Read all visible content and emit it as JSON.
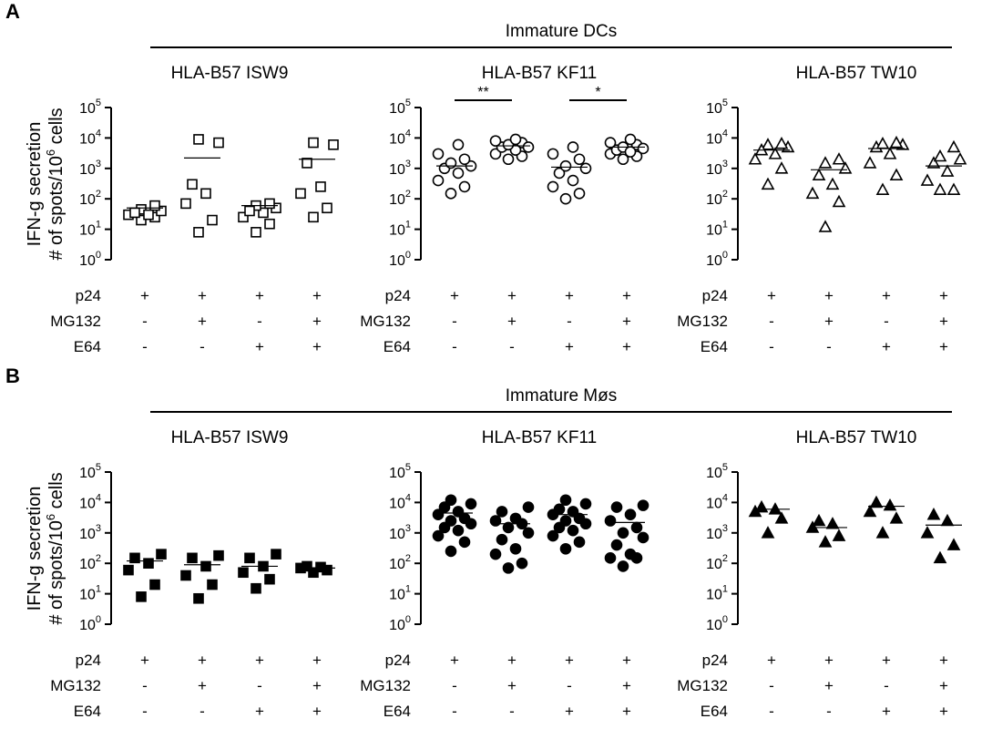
{
  "panels": [
    {
      "letter": "A",
      "group_label": "Immature DCs",
      "ylabel_line1": "IFN-g secretion",
      "ylabel_line2": "# of spots/10",
      "ylabel_sup": "6",
      "ylabel_tail": " cells"
    },
    {
      "letter": "B",
      "group_label": "Immature Møs",
      "ylabel_line1": "IFN-g secretion",
      "ylabel_line2": "# of spots/10",
      "ylabel_sup": "6",
      "ylabel_tail": " cells"
    }
  ],
  "condition_labels": [
    "p24",
    "MG132",
    "E64"
  ],
  "condition_table": [
    [
      "+",
      "+",
      "+",
      "+"
    ],
    [
      "-",
      "+",
      "-",
      "+"
    ],
    [
      "-",
      "-",
      "+",
      "+"
    ]
  ],
  "chart_data": [
    {
      "type": "scatter",
      "panel": "A",
      "title": "HLA-B57 ISW9",
      "marker": "open-square",
      "y_scale": "log",
      "ylim": [
        1,
        100000
      ],
      "yticks": [
        "10^0",
        "10^1",
        "10^2",
        "10^3",
        "10^4",
        "10^5"
      ],
      "series": [
        {
          "points": [
            20,
            30,
            25,
            40,
            60,
            45,
            30,
            35
          ],
          "mean": 50
        },
        {
          "points": [
            8,
            20,
            70,
            150,
            300,
            7000,
            9000
          ],
          "mean": 2200
        },
        {
          "points": [
            8,
            15,
            25,
            35,
            50,
            70,
            60,
            40
          ],
          "mean": 60
        },
        {
          "points": [
            25,
            50,
            150,
            250,
            1500,
            6000,
            7000
          ],
          "mean": 2000
        }
      ]
    },
    {
      "type": "scatter",
      "panel": "A",
      "title": "HLA-B57 KF11",
      "marker": "open-circle",
      "y_scale": "log",
      "ylim": [
        1,
        100000
      ],
      "yticks": [
        "10^0",
        "10^1",
        "10^2",
        "10^3",
        "10^4",
        "10^5"
      ],
      "series": [
        {
          "points": [
            150,
            250,
            400,
            700,
            1000,
            1200,
            1500,
            2000,
            3000,
            6000
          ],
          "mean": 1200
        },
        {
          "points": [
            2000,
            2500,
            3000,
            4000,
            5000,
            6000,
            7000,
            8000,
            9000,
            5000
          ],
          "mean": 5500
        },
        {
          "points": [
            100,
            150,
            250,
            400,
            700,
            1000,
            1200,
            2000,
            3000,
            5000
          ],
          "mean": 1100
        },
        {
          "points": [
            2000,
            2500,
            3000,
            4000,
            5000,
            6000,
            7000,
            9000,
            3500,
            4500
          ],
          "mean": 5000
        }
      ],
      "significance": [
        {
          "from": 0,
          "to": 1,
          "label": "**"
        },
        {
          "from": 2,
          "to": 3,
          "label": "*"
        }
      ]
    },
    {
      "type": "scatter",
      "panel": "A",
      "title": "HLA-B57 TW10",
      "marker": "open-triangle",
      "y_scale": "log",
      "ylim": [
        1,
        100000
      ],
      "yticks": [
        "10^0",
        "10^1",
        "10^2",
        "10^3",
        "10^4",
        "10^5"
      ],
      "series": [
        {
          "points": [
            300,
            1000,
            2000,
            3000,
            5000,
            6000,
            6500,
            4000
          ],
          "mean": 4000
        },
        {
          "points": [
            12,
            80,
            150,
            300,
            600,
            1000,
            1500,
            2000
          ],
          "mean": 900
        },
        {
          "points": [
            200,
            600,
            1500,
            3000,
            5000,
            6000,
            6500,
            7000
          ],
          "mean": 4500
        },
        {
          "points": [
            200,
            200,
            400,
            800,
            1500,
            2000,
            2500,
            5000
          ],
          "mean": 1200
        }
      ]
    },
    {
      "type": "scatter",
      "panel": "B",
      "title": "HLA-B57 ISW9",
      "marker": "filled-square",
      "y_scale": "log",
      "ylim": [
        1,
        100000
      ],
      "yticks": [
        "10^0",
        "10^1",
        "10^2",
        "10^3",
        "10^4",
        "10^5"
      ],
      "series": [
        {
          "points": [
            8,
            20,
            60,
            100,
            150,
            200
          ],
          "mean": 120
        },
        {
          "points": [
            7,
            20,
            40,
            80,
            150,
            180
          ],
          "mean": 90
        },
        {
          "points": [
            15,
            30,
            50,
            80,
            150,
            200
          ],
          "mean": 80
        },
        {
          "points": [
            50,
            60,
            70,
            80,
            75
          ],
          "mean": 70
        }
      ]
    },
    {
      "type": "scatter",
      "panel": "B",
      "title": "HLA-B57 KF11",
      "marker": "filled-circle",
      "y_scale": "log",
      "ylim": [
        1,
        100000
      ],
      "yticks": [
        "10^0",
        "10^1",
        "10^2",
        "10^3",
        "10^4",
        "10^5"
      ],
      "series": [
        {
          "points": [
            250,
            500,
            800,
            1200,
            2000,
            3000,
            4000,
            5000,
            7000,
            9000,
            12000,
            1500,
            2500
          ],
          "mean": 4500
        },
        {
          "points": [
            70,
            100,
            200,
            300,
            600,
            1000,
            1500,
            2000,
            3000,
            5000,
            7000,
            2500
          ],
          "mean": 2000
        },
        {
          "points": [
            300,
            500,
            800,
            1200,
            2000,
            3000,
            4000,
            6000,
            9000,
            12000,
            1500,
            2500,
            5000
          ],
          "mean": 4000
        },
        {
          "points": [
            80,
            150,
            200,
            400,
            700,
            1000,
            1500,
            2500,
            4000,
            7000,
            8000,
            150
          ],
          "mean": 2200
        }
      ]
    },
    {
      "type": "scatter",
      "panel": "B",
      "title": "HLA-B57 TW10",
      "marker": "filled-triangle",
      "y_scale": "log",
      "ylim": [
        1,
        100000
      ],
      "yticks": [
        "10^0",
        "10^1",
        "10^2",
        "10^3",
        "10^4",
        "10^5"
      ],
      "series": [
        {
          "points": [
            1000,
            3000,
            5000,
            6000,
            7000
          ],
          "mean": 6000
        },
        {
          "points": [
            500,
            800,
            1500,
            2000,
            2500
          ],
          "mean": 1500
        },
        {
          "points": [
            1000,
            3000,
            5000,
            8000,
            10000
          ],
          "mean": 7500
        },
        {
          "points": [
            150,
            400,
            1000,
            2500,
            4000
          ],
          "mean": 1800
        }
      ]
    }
  ]
}
